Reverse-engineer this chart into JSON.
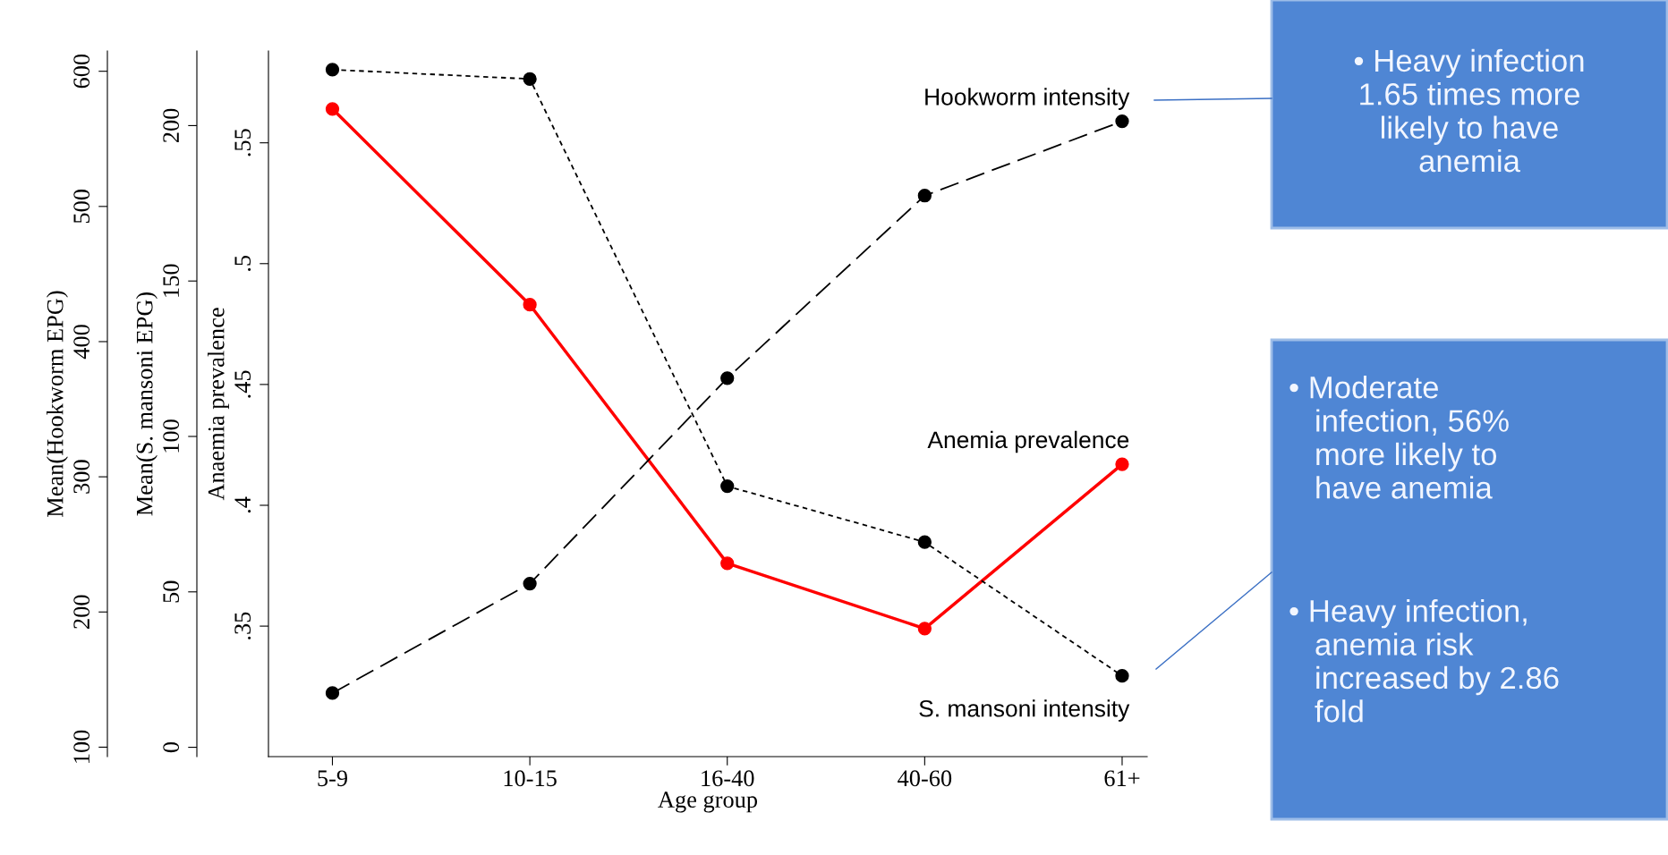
{
  "chart_data": {
    "type": "line",
    "xlabel": "Age group",
    "ylabel": "Anaemia prevalence",
    "y2label": "Mean(S. mansoni EPG)",
    "y3label": "Mean(Hookworm EPG)",
    "categories": [
      "5-9",
      "10-15",
      "16-40",
      "40-60",
      "61+"
    ],
    "series": [
      {
        "name": "Hookworm intensity",
        "color": "#000000",
        "axis": "y3",
        "line_style": "dashed",
        "values": [
          140,
          221,
          373,
          508,
          563
        ]
      },
      {
        "name": "Anemia prevalence",
        "color": "#ff0000",
        "axis": "y",
        "line_style": "solid",
        "values": [
          0.564,
          0.483,
          0.376,
          0.349,
          0.417
        ]
      },
      {
        "name": "S. mansoni intensity",
        "color": "#000000",
        "axis": "y2",
        "line_style": "dotted",
        "values": [
          218,
          215,
          84,
          66,
          23
        ]
      }
    ],
    "ylim": [
      0.296,
      0.588
    ],
    "yticks": [
      {
        "value": 0.35,
        "label": ".35"
      },
      {
        "value": 0.4,
        "label": ".4"
      },
      {
        "value": 0.45,
        "label": ".45"
      },
      {
        "value": 0.5,
        "label": ".5"
      },
      {
        "value": 0.55,
        "label": ".55"
      }
    ],
    "y2lim": [
      -3,
      224
    ],
    "y2ticks": [
      0,
      50,
      100,
      150,
      200
    ],
    "y3lim": [
      93,
      615
    ],
    "y3ticks": [
      100,
      200,
      300,
      400,
      500,
      600
    ],
    "marker": "circle",
    "grid": false,
    "legend": false,
    "annotations": [
      "• Heavy infection\n1.65 times more\nlikely to have\nanemia",
      "• Moderate\n   infection, 56%\n   more likely to\n   have anemia",
      "• Heavy infection,\n   anemia risk\n   increased by 2.86\n   fold"
    ]
  }
}
